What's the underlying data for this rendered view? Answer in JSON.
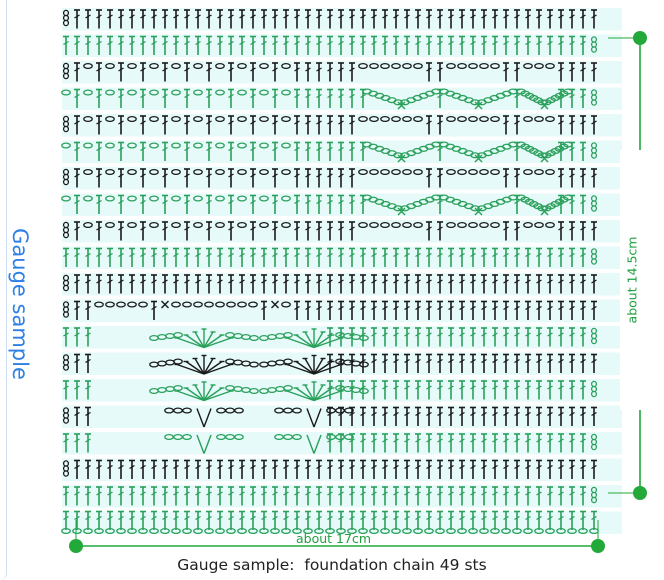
{
  "title": "Gauge sample",
  "caption": "Gauge sample:  foundation chain 49 sts",
  "width_label": "about 17cm",
  "height_label": "about 14.5cm",
  "colors": {
    "stitch_black": "#1a1a1a",
    "stitch_green": "#2aa05a",
    "row_band": "#e6fafa",
    "measure_green": "#22a93a",
    "title_blue": "#2f80e6"
  },
  "diagram": {
    "stitches_per_row": 49,
    "row_count": 20,
    "rows": [
      {
        "row": 1,
        "color": "black",
        "pattern": "double-crochet-all"
      },
      {
        "row": 2,
        "color": "green",
        "pattern": "double-crochet-all"
      },
      {
        "row": 3,
        "color": "black",
        "pattern": "mesh-left, chain-space-right"
      },
      {
        "row": 4,
        "color": "green",
        "pattern": "mesh-left, chain-arches-right"
      },
      {
        "row": 5,
        "color": "black",
        "pattern": "mesh-left, chain-space-right"
      },
      {
        "row": 6,
        "color": "green",
        "pattern": "mesh-left, chain-arches-right"
      },
      {
        "row": 7,
        "color": "black",
        "pattern": "mesh-left, chain-space-right"
      },
      {
        "row": 8,
        "color": "green",
        "pattern": "mesh-left, chain-arches-right"
      },
      {
        "row": 9,
        "color": "black",
        "pattern": "mesh-left, chain-space-right"
      },
      {
        "row": 10,
        "color": "green",
        "pattern": "double-crochet-all"
      },
      {
        "row": 11,
        "color": "black",
        "pattern": "double-crochet-all"
      },
      {
        "row": 12,
        "color": "black",
        "pattern": "chain-space-left, double-crochet-right"
      },
      {
        "row": 13,
        "color": "green",
        "pattern": "fan-left, double-crochet-right"
      },
      {
        "row": 14,
        "color": "black",
        "pattern": "fan-left, double-crochet-right"
      },
      {
        "row": 15,
        "color": "green",
        "pattern": "fan-left, double-crochet-right"
      },
      {
        "row": 16,
        "color": "black",
        "pattern": "v-stitch-left, double-crochet-right"
      },
      {
        "row": 17,
        "color": "green",
        "pattern": "v-stitch-left, double-crochet-right"
      },
      {
        "row": 18,
        "color": "black",
        "pattern": "double-crochet-all"
      },
      {
        "row": 19,
        "color": "green",
        "pattern": "double-crochet-all"
      },
      {
        "row": 20,
        "color": "green",
        "pattern": "foundation-chain"
      }
    ]
  }
}
